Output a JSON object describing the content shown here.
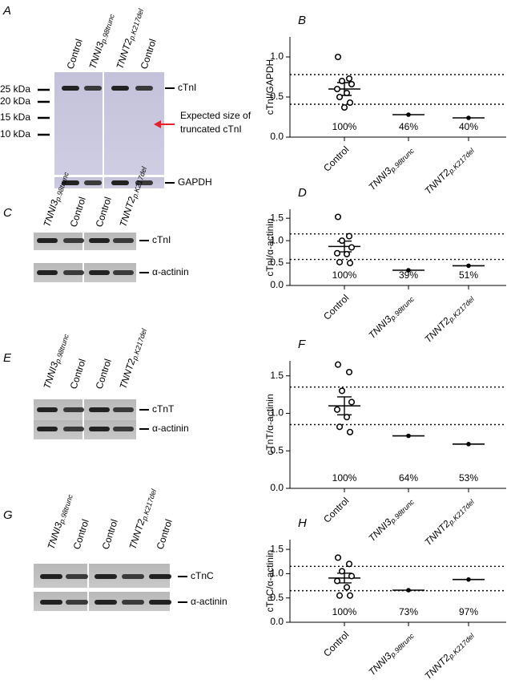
{
  "blots": [
    {
      "panel": "A",
      "lanes": [
        "Control",
        "TNNI3p.98trunc",
        "TNNT2p.K217del",
        "Control"
      ],
      "rows": [
        "cTnI",
        "GAPDH"
      ],
      "markers": [
        "25 kDa",
        "20 kDa",
        "15 kDa",
        "10 kDa"
      ],
      "arrow_text": [
        "Expected size of",
        "truncated cTnI"
      ]
    },
    {
      "panel": "C",
      "lanes": [
        "TNNI3p.98trunc",
        "Control",
        "Control",
        "TNNT2p.K217del"
      ],
      "rows": [
        "cTnI",
        "α-actinin"
      ]
    },
    {
      "panel": "E",
      "lanes": [
        "TNNI3p.98trunc",
        "Control",
        "Control",
        "TNNT2p.K217del"
      ],
      "rows": [
        "cTnT",
        "α-actinin"
      ]
    },
    {
      "panel": "G",
      "lanes": [
        "TNNI3p.98trunc",
        "Control",
        "Control",
        "TNNT2p.K217del",
        "Control"
      ],
      "rows": [
        "cTnC",
        "α-actinin"
      ]
    }
  ],
  "chart_data": [
    {
      "type": "dotplot",
      "panel": "B",
      "ylabel": "cTnI/GAPDH",
      "color": "#000000",
      "categories": [
        "Control",
        "TNNI3p.98trunc",
        "TNNT2p.K217del"
      ],
      "ylim": [
        0,
        1.25
      ],
      "yticks": [
        {
          "value": 0,
          "label": "0.0"
        },
        {
          "value": 0.5,
          "label": "0.5"
        },
        {
          "value": 1,
          "label": "1.0"
        }
      ],
      "control_points": [
        1.0,
        0.73,
        0.7,
        0.66,
        0.6,
        0.55,
        0.5,
        0.43,
        0.37
      ],
      "means": [
        0.6,
        0.28,
        0.24
      ],
      "errors": [
        0.08,
        null,
        null
      ],
      "ref_lines": [
        0.78,
        0.41
      ],
      "annotations": [
        "100%",
        "46%",
        "40%"
      ]
    },
    {
      "type": "dotplot",
      "panel": "D",
      "ylabel": "cTnI/α-actinin",
      "color": "#000000",
      "categories": [
        "Control",
        "TNNI3p.98trunc",
        "TNNT2p.K217del"
      ],
      "ylim": [
        0,
        1.7
      ],
      "yticks": [
        {
          "value": 0,
          "label": "0.0"
        },
        {
          "value": 0.5,
          "label": "0.5"
        },
        {
          "value": 1,
          "label": "1.0"
        },
        {
          "value": 1.5,
          "label": "1.5"
        }
      ],
      "control_points": [
        1.53,
        1.1,
        1.0,
        0.85,
        0.72,
        0.7,
        0.52,
        0.5
      ],
      "means": [
        0.87,
        0.34,
        0.44
      ],
      "errors": [
        0.12,
        null,
        null
      ],
      "ref_lines": [
        1.15,
        0.58
      ],
      "annotations": [
        "100%",
        "39%",
        "51%"
      ]
    },
    {
      "type": "dotplot",
      "panel": "F",
      "ylabel": "cTnT/α-actinin",
      "color": "#000000",
      "categories": [
        "Control",
        "TNNI3p.98trunc",
        "TNNT2p.K217del"
      ],
      "ylim": [
        0,
        1.7
      ],
      "yticks": [
        {
          "value": 0,
          "label": "0.0"
        },
        {
          "value": 0.5,
          "label": "0.5"
        },
        {
          "value": 1,
          "label": "1.0"
        },
        {
          "value": 1.5,
          "label": "1.5"
        }
      ],
      "control_points": [
        1.65,
        1.55,
        1.3,
        1.15,
        1.05,
        0.95,
        0.82,
        0.75
      ],
      "means": [
        1.1,
        0.7,
        0.59
      ],
      "errors": [
        0.12,
        null,
        null
      ],
      "ref_lines": [
        1.35,
        0.85
      ],
      "annotations": [
        "100%",
        "64%",
        "53%"
      ]
    },
    {
      "type": "dotplot",
      "panel": "H",
      "ylabel": "cTnC/α-actinin",
      "color": "#000000",
      "categories": [
        "Control",
        "TNNI3p.98trunc",
        "TNNT2p.K217del"
      ],
      "ylim": [
        0,
        1.7
      ],
      "yticks": [
        {
          "value": 0,
          "label": "0.0"
        },
        {
          "value": 0.5,
          "label": "0.5"
        },
        {
          "value": 1,
          "label": "1.0"
        },
        {
          "value": 1.5,
          "label": "1.5"
        }
      ],
      "control_points": [
        1.33,
        1.2,
        1.05,
        0.95,
        0.85,
        0.72,
        0.55,
        0.55
      ],
      "means": [
        0.91,
        0.66,
        0.88
      ],
      "errors": [
        0.1,
        null,
        null
      ],
      "ref_lines": [
        1.15,
        0.65
      ],
      "annotations": [
        "100%",
        "73%",
        "97%"
      ]
    }
  ]
}
